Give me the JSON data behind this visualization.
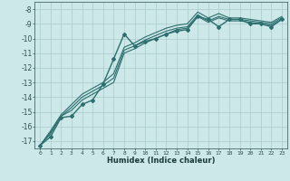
{
  "xlabel": "Humidex (Indice chaleur)",
  "ylabel": "",
  "background_color": "#cce8e8",
  "grid_color": "#aacccc",
  "line_color": "#2d6e6e",
  "xlim": [
    -0.5,
    23.5
  ],
  "ylim": [
    -17.5,
    -7.5
  ],
  "yticks": [
    -17,
    -16,
    -15,
    -14,
    -13,
    -12,
    -11,
    -10,
    -9,
    -8
  ],
  "xticks": [
    0,
    1,
    2,
    3,
    4,
    5,
    6,
    7,
    8,
    9,
    10,
    11,
    12,
    13,
    14,
    15,
    16,
    17,
    18,
    19,
    20,
    21,
    22,
    23
  ],
  "series": [
    {
      "x": [
        0,
        1,
        2,
        3,
        4,
        5,
        6,
        7,
        8,
        9,
        10,
        11,
        12,
        13,
        14,
        15,
        16,
        17,
        18,
        19,
        20,
        21,
        22,
        23
      ],
      "y": [
        -17.3,
        -16.7,
        -15.4,
        -15.3,
        -14.5,
        -14.2,
        -13.1,
        -11.4,
        -9.7,
        -10.5,
        -10.2,
        -10.0,
        -9.7,
        -9.5,
        -9.4,
        -8.5,
        -8.7,
        -9.2,
        -8.7,
        -8.7,
        -9.0,
        -9.0,
        -9.2,
        -8.7
      ],
      "marker": "D",
      "markersize": 2.0,
      "linewidth": 1.0
    },
    {
      "x": [
        0,
        1,
        2,
        3,
        4,
        5,
        6,
        7,
        8,
        9,
        10,
        11,
        12,
        13,
        14,
        15,
        16,
        17,
        18,
        19,
        20,
        21,
        22,
        23
      ],
      "y": [
        -17.3,
        -16.5,
        -15.3,
        -14.9,
        -14.2,
        -13.8,
        -13.4,
        -13.0,
        -11.0,
        -10.7,
        -10.3,
        -10.0,
        -9.7,
        -9.4,
        -9.3,
        -8.5,
        -8.9,
        -8.6,
        -8.8,
        -8.8,
        -8.9,
        -9.0,
        -9.1,
        -8.7
      ],
      "marker": null,
      "markersize": 0,
      "linewidth": 0.8
    },
    {
      "x": [
        0,
        1,
        2,
        3,
        4,
        5,
        6,
        7,
        8,
        9,
        10,
        11,
        12,
        13,
        14,
        15,
        16,
        17,
        18,
        19,
        20,
        21,
        22,
        23
      ],
      "y": [
        -17.3,
        -16.4,
        -15.3,
        -14.7,
        -14.0,
        -13.6,
        -13.2,
        -12.7,
        -10.8,
        -10.5,
        -10.1,
        -9.8,
        -9.5,
        -9.3,
        -9.2,
        -8.4,
        -8.8,
        -8.5,
        -8.7,
        -8.7,
        -8.8,
        -8.9,
        -9.0,
        -8.6
      ],
      "marker": null,
      "markersize": 0,
      "linewidth": 0.8
    },
    {
      "x": [
        0,
        1,
        2,
        3,
        4,
        5,
        6,
        7,
        8,
        9,
        10,
        11,
        12,
        13,
        14,
        15,
        16,
        17,
        18,
        19,
        20,
        21,
        22,
        23
      ],
      "y": [
        -17.3,
        -16.3,
        -15.2,
        -14.5,
        -13.8,
        -13.4,
        -13.0,
        -12.4,
        -10.6,
        -10.3,
        -9.9,
        -9.6,
        -9.3,
        -9.1,
        -9.0,
        -8.2,
        -8.6,
        -8.3,
        -8.6,
        -8.6,
        -8.7,
        -8.8,
        -8.9,
        -8.5
      ],
      "marker": null,
      "markersize": 0,
      "linewidth": 0.8
    }
  ]
}
